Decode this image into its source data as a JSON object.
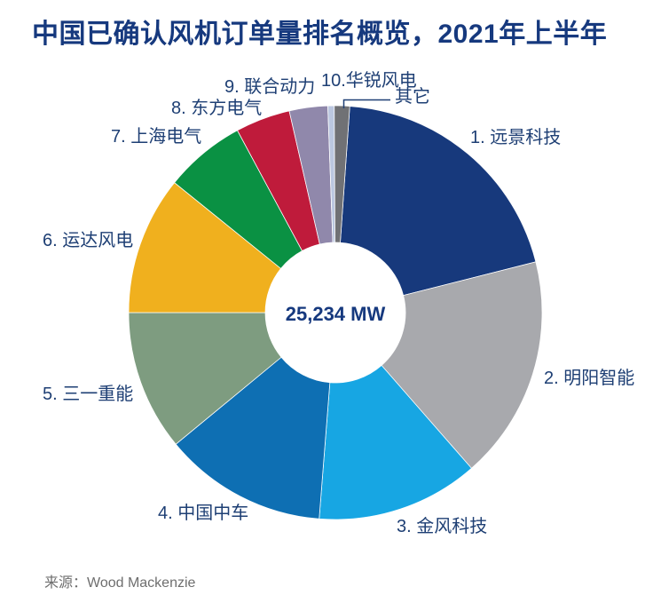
{
  "chart_data": {
    "type": "pie",
    "subtype": "donut",
    "title": "中国已确认风机订单量排名概览，2021年上半年",
    "center_label": "25,234 MW",
    "total_mw": 25234,
    "units": "MW",
    "source": "来源：Wood Mackenzie",
    "legend_position": "labels around donut",
    "angle_convention": "degrees clockwise from 12 o'clock",
    "slices": [
      {
        "rank": 1,
        "id": "envision",
        "label": "1. 远景科技",
        "color": "#17397C",
        "start_deg": 4.0,
        "end_deg": 75.8,
        "share_pct_est": 19.9
      },
      {
        "rank": 2,
        "id": "mingyang",
        "label": "2. 明阳智能",
        "color": "#A8A9AD",
        "start_deg": 75.8,
        "end_deg": 138.8,
        "share_pct_est": 17.5
      },
      {
        "rank": 3,
        "id": "goldwind",
        "label": "3. 金风科技",
        "color": "#17A6E3",
        "start_deg": 138.8,
        "end_deg": 184.5,
        "share_pct_est": 12.7
      },
      {
        "rank": 4,
        "id": "crrc",
        "label": "4. 中国中车",
        "color": "#0E6FB3",
        "start_deg": 184.5,
        "end_deg": 230.5,
        "share_pct_est": 12.8
      },
      {
        "rank": 5,
        "id": "sany",
        "label": "5. 三一重能",
        "color": "#7E9C80",
        "start_deg": 230.5,
        "end_deg": 270.0,
        "share_pct_est": 11.0
      },
      {
        "rank": 6,
        "id": "windey",
        "label": "6. 运达风电",
        "color": "#F0B01E",
        "start_deg": 270.0,
        "end_deg": 308.9,
        "share_pct_est": 10.8
      },
      {
        "rank": 7,
        "id": "shanghai-electric",
        "label": "7. 上海电气",
        "color": "#0A9143",
        "start_deg": 308.9,
        "end_deg": 331.7,
        "share_pct_est": 6.3
      },
      {
        "rank": 8,
        "id": "dongfang-electric",
        "label": "8. 东方电气",
        "color": "#BF1B3B",
        "start_deg": 331.7,
        "end_deg": 347.1,
        "share_pct_est": 4.3
      },
      {
        "rank": 9,
        "id": "united-power",
        "label": "9. 联合动力",
        "color": "#9088AB",
        "start_deg": 347.1,
        "end_deg": 357.9,
        "share_pct_est": 3.0
      },
      {
        "rank": 10,
        "id": "sinovel",
        "label": "10.华锐风电",
        "color": "#BBC7E0",
        "start_deg": 357.9,
        "end_deg": 359.7,
        "share_pct_est": 0.5
      },
      {
        "rank": 11,
        "id": "others",
        "label": "其它",
        "color": "#707175",
        "start_deg": 359.7,
        "end_deg": 4.0,
        "share_pct_est": 1.2
      }
    ]
  }
}
